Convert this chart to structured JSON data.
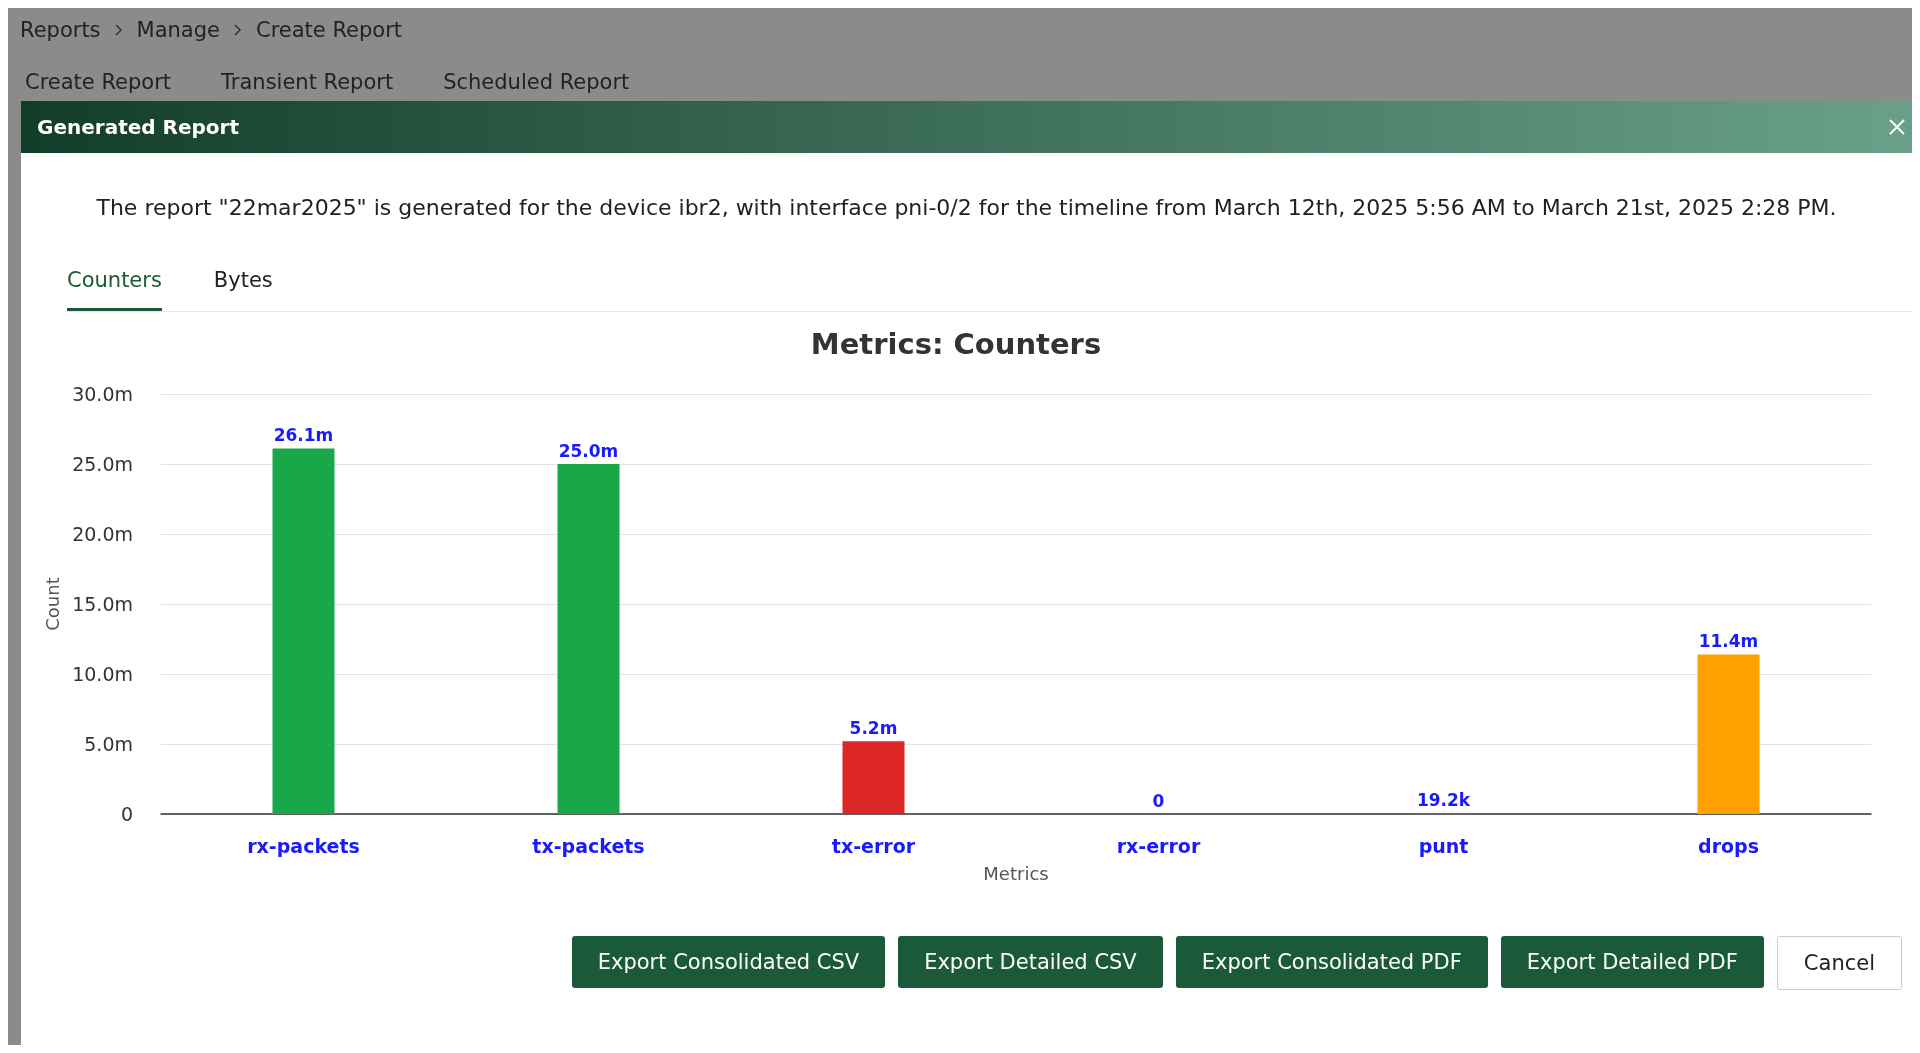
{
  "chart_data": {
    "type": "bar",
    "title": "Metrics: Counters",
    "subtitle": "The report \"22mar2025\" is generated for the device ibr2, with interface pni-0/2 for the timeline from March 12th, 2025 5:56 AM to March 21st, 2025 2:28 PM.",
    "xlabel": "Metrics",
    "ylabel": "Count",
    "categories": [
      "rx-packets",
      "tx-packets",
      "tx-error",
      "rx-error",
      "punt",
      "drops"
    ],
    "values": [
      26100000,
      25000000,
      5200000,
      0,
      19200,
      11400000
    ],
    "value_labels": [
      "26.1m",
      "25.0m",
      "5.2m",
      "0",
      "19.2k",
      "11.4m"
    ],
    "colors": [
      "#18a84a",
      "#18a84a",
      "#dd2626",
      "#18a84a",
      "#18a84a",
      "#ffa000"
    ],
    "ylim": [
      0,
      30000000
    ],
    "yticks": [
      0,
      {
        "value": 5000000,
        "label": "5.0m"
      },
      {
        "value": 10000000,
        "label": "10.0m"
      },
      {
        "value": 15000000,
        "label": "15.0m"
      },
      {
        "value": 20000000,
        "label": "20.0m"
      },
      {
        "value": 25000000,
        "label": "25.0m"
      },
      {
        "value": 30000000,
        "label": "30.0m"
      }
    ],
    "grid": "y",
    "annotations": [
      "Reports",
      "Manage",
      "Create Report",
      "Create Report",
      "Transient Report",
      "Scheduled Report",
      "Generated Report",
      "Counters",
      "Bytes",
      "Export Consolidated CSV",
      "Export Detailed CSV",
      "Export Consolidated PDF",
      "Export Detailed PDF",
      "Cancel"
    ]
  }
}
